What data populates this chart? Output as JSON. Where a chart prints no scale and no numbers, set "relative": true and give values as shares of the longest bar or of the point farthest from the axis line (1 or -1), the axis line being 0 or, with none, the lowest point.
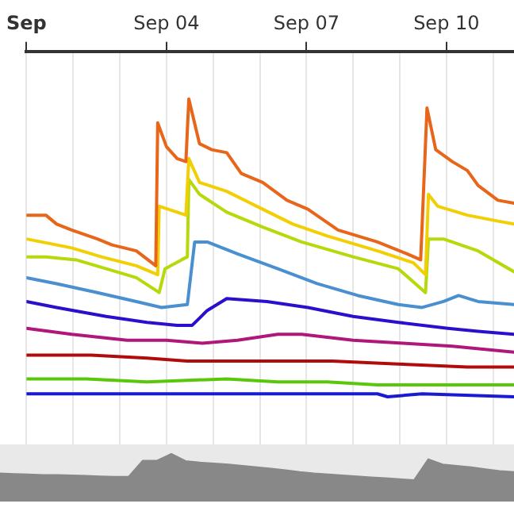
{
  "chart_data": [
    {
      "type": "line",
      "relative": true,
      "grid": "x",
      "xlim": [
        "--09-01T00:00",
        "--09-11T10:45"
      ],
      "xticks": [
        {
          "value": "--09-01",
          "label": "Sep"
        },
        {
          "value": "--09-02",
          "label": null
        },
        {
          "value": "--09-03",
          "label": null
        },
        {
          "value": "--09-04",
          "label": "Sep 04"
        },
        {
          "value": "--09-05",
          "label": null
        },
        {
          "value": "--09-06",
          "label": null
        },
        {
          "value": "--09-07",
          "label": "Sep 07"
        },
        {
          "value": "--09-08",
          "label": null
        },
        {
          "value": "--09-09",
          "label": null
        },
        {
          "value": "--09-10",
          "label": "Sep 10"
        },
        {
          "value": "--09-11",
          "label": null
        }
      ],
      "series": [
        {
          "color": "#e8661a",
          "x": [
            "--09-01T00:00",
            "--09-01T10:00",
            "--09-01T15:30",
            "--09-01T23:15",
            "--09-02T12:30",
            "--09-02T20:00",
            "--09-03T08:30",
            "--09-03T18:30",
            "--09-03T19:30",
            "--09-04T00:00",
            "--09-04T05:30",
            "--09-04T10:00",
            "--09-04T11:30",
            "--09-04T17:00",
            "--09-04T23:15",
            "--09-05T07:00",
            "--09-05T14:30",
            "--09-06T01:30",
            "--09-06T14:00",
            "--09-07T00:45",
            "--09-07T16:15",
            "--09-08T12:30",
            "--09-09T03:45",
            "--09-09T10:45",
            "--09-09T14:00",
            "--09-09T18:30",
            "--09-10T03:00",
            "--09-10T10:45",
            "--09-10T16:15",
            "--09-11T02:30",
            "--09-11T10:45"
          ],
          "values": [
            0.61,
            0.61,
            0.58,
            0.56,
            0.53,
            0.51,
            0.49,
            0.44,
            0.92,
            0.84,
            0.8,
            0.79,
            1,
            0.85,
            0.83,
            0.82,
            0.75,
            0.72,
            0.66,
            0.63,
            0.56,
            0.52,
            0.48,
            0.46,
            0.97,
            0.83,
            0.79,
            0.76,
            0.71,
            0.66,
            0.65
          ]
        },
        {
          "color": "#f2cf05",
          "x": [
            "--09-01T00:00",
            "--09-01T07:45",
            "--09-01T23:15",
            "--09-02T14:30",
            "--09-03T08:30",
            "--09-03T19:30",
            "--09-03T20:15",
            "--09-04T05:30",
            "--09-04T10:00",
            "--09-04T11:30",
            "--09-04T17:00",
            "--09-05T07:00",
            "--09-06T01:30",
            "--09-06T17:00",
            "--09-07T10:45",
            "--09-08T12:30",
            "--09-09T07:00",
            "--09-09T13:15",
            "--09-09T14:45",
            "--09-09T19:30",
            "--09-10T10:45",
            "--09-11T02:30",
            "--09-11T10:45"
          ],
          "values": [
            0.53,
            0.52,
            0.5,
            0.47,
            0.44,
            0.41,
            0.64,
            0.62,
            0.61,
            0.8,
            0.72,
            0.69,
            0.63,
            0.58,
            0.54,
            0.49,
            0.45,
            0.41,
            0.68,
            0.64,
            0.61,
            0.59,
            0.58
          ]
        },
        {
          "color": "#b5d90b",
          "x": [
            "--09-01T00:00",
            "--09-01T10:00",
            "--09-02T01:30",
            "--09-02T17:00",
            "--09-03T08:30",
            "--09-03T20:15",
            "--09-03T23:15",
            "--09-04T07:45",
            "--09-04T10:45",
            "--09-04T11:30",
            "--09-04T17:00",
            "--09-05T07:00",
            "--09-06T01:30",
            "--09-06T21:30",
            "--09-08T00:00",
            "--09-08T23:15",
            "--09-09T13:15",
            "--09-09T14:45",
            "--09-09T22:30",
            "--09-10T16:15",
            "--09-11T10:45"
          ],
          "values": [
            0.47,
            0.47,
            0.46,
            0.43,
            0.4,
            0.35,
            0.43,
            0.46,
            0.47,
            0.73,
            0.68,
            0.62,
            0.57,
            0.52,
            0.47,
            0.43,
            0.35,
            0.53,
            0.53,
            0.49,
            0.42
          ]
        },
        {
          "color": "#4a90d0",
          "x": [
            "--09-01T00:00",
            "--09-01T15:30",
            "--09-02T12:30",
            "--09-03T08:30",
            "--09-03T21:30",
            "--09-04T10:45",
            "--09-04T14:30",
            "--09-04T21:00",
            "--09-05T12:30",
            "--09-06T09:15",
            "--09-07T05:30",
            "--09-08T02:30",
            "--09-08T23:15",
            "--09-09T11:30",
            "--09-09T22:30",
            "--09-10T06:15",
            "--09-10T16:15",
            "--09-11T10:45"
          ],
          "values": [
            0.4,
            0.38,
            0.35,
            0.32,
            0.3,
            0.31,
            0.52,
            0.52,
            0.48,
            0.43,
            0.38,
            0.34,
            0.31,
            0.3,
            0.32,
            0.34,
            0.32,
            0.31
          ]
        },
        {
          "color": "#2a10cc",
          "x": [
            "--09-01T00:00",
            "--09-01T15:30",
            "--09-02T17:00",
            "--09-03T14:00",
            "--09-04T05:30",
            "--09-04T13:15",
            "--09-04T21:00",
            "--09-05T07:00",
            "--09-06T03:45",
            "--09-07T00:45",
            "--09-08T00:00",
            "--09-08T23:15",
            "--09-10T00:45",
            "--09-10T16:15",
            "--09-11T10:45"
          ],
          "values": [
            0.32,
            0.3,
            0.27,
            0.25,
            0.24,
            0.24,
            0.29,
            0.33,
            0.32,
            0.3,
            0.27,
            0.25,
            0.23,
            0.22,
            0.21
          ]
        },
        {
          "color": "#b0177a",
          "x": [
            "--09-01T00:00",
            "--09-01T23:15",
            "--09-03T03:45",
            "--09-04T00:00",
            "--09-04T18:30",
            "--09-05T12:30",
            "--09-06T09:15",
            "--09-06T21:30",
            "--09-08T00:00",
            "--09-09T01:30",
            "--09-10T03:00",
            "--09-11T10:45"
          ],
          "values": [
            0.23,
            0.21,
            0.19,
            0.19,
            0.18,
            0.19,
            0.21,
            0.21,
            0.19,
            0.18,
            0.17,
            0.15
          ]
        },
        {
          "color": "#b00c0c",
          "x": [
            "--09-01T00:00",
            "--09-02T09:15",
            "--09-03T14:00",
            "--09-04T10:45",
            "--09-06T19:30",
            "--09-07T13:15",
            "--09-08T23:15",
            "--09-10T10:45",
            "--09-11T10:45"
          ],
          "values": [
            0.14,
            0.14,
            0.13,
            0.12,
            0.12,
            0.12,
            0.11,
            0.1,
            0.1
          ]
        },
        {
          "color": "#5ac80a",
          "x": [
            "--09-01T00:00",
            "--09-02T07:00",
            "--09-03T14:00",
            "--09-05T07:00",
            "--09-06T09:15",
            "--09-07T10:45",
            "--09-08T12:30",
            "--09-10T16:15",
            "--09-11T10:45"
          ],
          "values": [
            0.06,
            0.06,
            0.05,
            0.06,
            0.05,
            0.05,
            0.04,
            0.04,
            0.04
          ]
        },
        {
          "color": "#1a1ad0",
          "x": [
            "--09-01T00:00",
            "--09-08T12:30",
            "--09-08T17:45",
            "--09-09T11:30",
            "--09-11T10:45"
          ],
          "values": [
            0.01,
            0.01,
            0,
            0.01,
            0
          ]
        }
      ]
    },
    {
      "type": "area",
      "relative": true,
      "color": "#888888",
      "categories": [
        null,
        null,
        null,
        null,
        null,
        null,
        null,
        null,
        null,
        null,
        null,
        null,
        null,
        null,
        null,
        null,
        null,
        null,
        null,
        null,
        null,
        null,
        null,
        null,
        null,
        null,
        null,
        null,
        null,
        null,
        null,
        null,
        null,
        null,
        null,
        null,
        null
      ],
      "values": [
        0.59,
        0.58,
        0.57,
        0.56,
        0.56,
        0.55,
        0.54,
        0.53,
        0.52,
        0.52,
        0.86,
        0.86,
        1,
        0.85,
        0.82,
        0.8,
        0.78,
        0.75,
        0.72,
        0.69,
        0.66,
        0.62,
        0.59,
        0.57,
        0.55,
        0.53,
        0.51,
        0.49,
        0.47,
        0.45,
        0.89,
        0.78,
        0.75,
        0.72,
        0.68,
        0.64,
        0.62
      ]
    }
  ]
}
